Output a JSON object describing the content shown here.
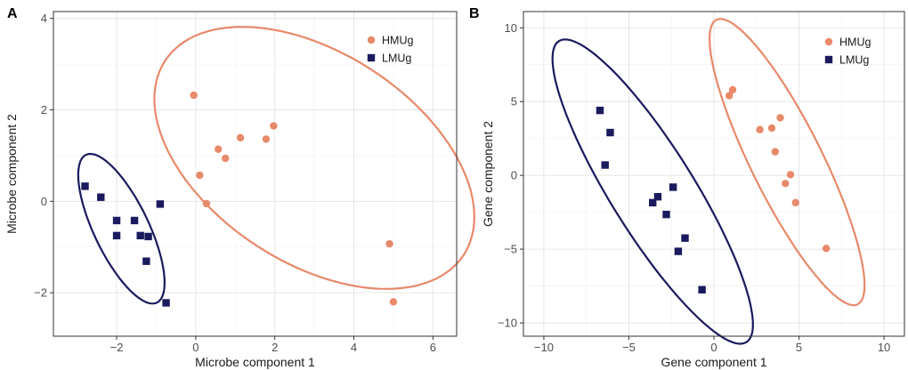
{
  "colors": {
    "HMUg": "#E8896A",
    "LMUg": "#1A1A5E"
  },
  "chart_data": [
    {
      "type": "scatter",
      "panel_label": "A",
      "xlabel": "Microbe component 1",
      "ylabel": "Microbe component 2",
      "xlim": [
        -3.6,
        6.6
      ],
      "ylim": [
        -2.95,
        4.15
      ],
      "xticks": [
        -2,
        0,
        2,
        4,
        6
      ],
      "yticks": [
        -2,
        0,
        2,
        4
      ],
      "xtick_labels": [
        "−2",
        "0",
        "2",
        "4",
        "6"
      ],
      "ytick_labels": [
        "−2",
        "0",
        "2",
        "4"
      ],
      "legend": [
        "HMUg",
        "LMUg"
      ],
      "legend_position": "top-right",
      "series": [
        {
          "name": "HMUg",
          "marker": "circle",
          "x": [
            -0.05,
            0.1,
            0.27,
            0.57,
            0.75,
            1.13,
            1.78,
            1.97,
            4.9,
            5.0
          ],
          "y": [
            2.32,
            0.57,
            -0.05,
            1.14,
            0.94,
            1.39,
            1.36,
            1.65,
            -0.93,
            -2.2
          ]
        },
        {
          "name": "LMUg",
          "marker": "square",
          "x": [
            -2.8,
            -2.4,
            -2.0,
            -2.0,
            -1.55,
            -1.4,
            -1.2,
            -1.25,
            -0.9,
            -0.75
          ],
          "y": [
            0.33,
            0.09,
            -0.42,
            -0.75,
            -0.42,
            -0.75,
            -0.77,
            -1.31,
            -0.06,
            -2.22
          ]
        }
      ],
      "ellipses": [
        {
          "name": "HMUg",
          "cx": 3.0,
          "cy": 0.95,
          "rx": 4.35,
          "ry": 2.38,
          "angle_deg": -26
        },
        {
          "name": "LMUg",
          "cx": -1.88,
          "cy": -0.6,
          "rx": 1.85,
          "ry": 0.67,
          "angle_deg": -60
        }
      ]
    },
    {
      "type": "scatter",
      "panel_label": "B",
      "xlabel": "Gene component 1",
      "ylabel": "Gene component 2",
      "xlim": [
        -11.2,
        11.2
      ],
      "ylim": [
        -10.9,
        11.1
      ],
      "xticks": [
        -10,
        -5,
        0,
        5,
        10
      ],
      "yticks": [
        -10,
        -5,
        0,
        5,
        10
      ],
      "xtick_labels": [
        "−10",
        "−5",
        "0",
        "5",
        "10"
      ],
      "ytick_labels": [
        "−10",
        "−5",
        "0",
        "5",
        "10"
      ],
      "legend": [
        "HMUg",
        "LMUg"
      ],
      "legend_position": "top-right",
      "series": [
        {
          "name": "HMUg",
          "marker": "circle",
          "x": [
            0.9,
            1.1,
            2.7,
            3.4,
            3.9,
            3.6,
            4.2,
            4.5,
            4.8,
            6.6
          ],
          "y": [
            5.4,
            5.8,
            3.1,
            3.2,
            3.9,
            1.6,
            -0.55,
            0.05,
            -1.85,
            -4.95
          ]
        },
        {
          "name": "LMUg",
          "marker": "square",
          "x": [
            -6.7,
            -6.1,
            -6.4,
            -3.6,
            -3.3,
            -2.8,
            -2.4,
            -1.7,
            -2.1,
            -0.7
          ],
          "y": [
            4.4,
            2.9,
            0.7,
            -1.85,
            -1.45,
            -2.65,
            -0.8,
            -4.25,
            -5.15,
            -7.75
          ]
        }
      ],
      "ellipses": [
        {
          "name": "HMUg",
          "cx": 4.3,
          "cy": 0.9,
          "rx": 10.5,
          "ry": 2.15,
          "angle_deg": -67
        },
        {
          "name": "LMUg",
          "cx": -3.6,
          "cy": -1.1,
          "rx": 11.6,
          "ry": 2.55,
          "angle_deg": -62
        }
      ]
    }
  ]
}
